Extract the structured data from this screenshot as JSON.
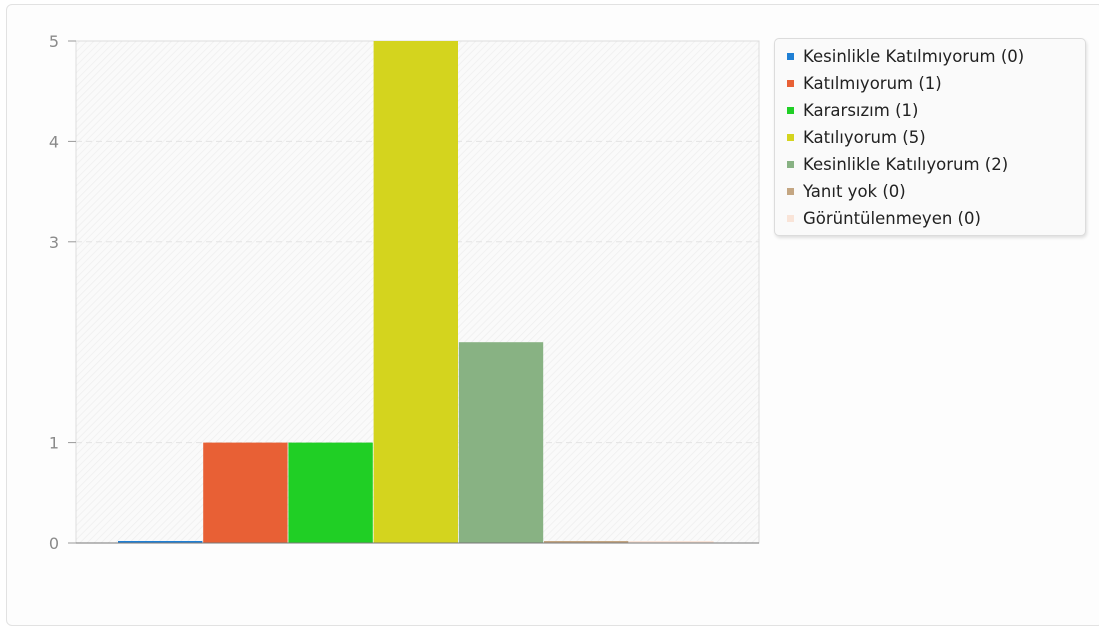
{
  "chart_data": {
    "type": "bar",
    "title": "",
    "xlabel": "",
    "ylabel": "",
    "ylim": [
      0,
      5
    ],
    "yticks": [
      "0",
      "1",
      "3",
      "4",
      "5"
    ],
    "ytick_values": [
      0,
      1,
      3,
      4,
      5
    ],
    "grid": true,
    "legend_placement": "top-right",
    "categories": [
      "Kesinlikle Katılmıyorum",
      "Katılmıyorum",
      "Kararsızım",
      "Katılıyorum",
      "Kesinlikle Katılıyorum",
      "Yanıt yok",
      "Görüntülenmeyen"
    ],
    "series": [
      {
        "name": "Kesinlikle Katılmıyorum (0)",
        "value": 0,
        "color": "#1f7fd4"
      },
      {
        "name": "Katılmıyorum (1)",
        "value": 1,
        "color": "#e86035"
      },
      {
        "name": "Kararsızım (1)",
        "value": 1,
        "color": "#20cf25"
      },
      {
        "name": "Katılıyorum (5)",
        "value": 5,
        "color": "#d4d41e"
      },
      {
        "name": "Kesinlikle Katılıyorum (2)",
        "value": 2,
        "color": "#88b283"
      },
      {
        "name": "Yanıt yok (0)",
        "value": 0,
        "color": "#c4a682"
      },
      {
        "name": "Görüntülenmeyen (0)",
        "value": 0,
        "color": "#f9e4d8"
      }
    ]
  }
}
